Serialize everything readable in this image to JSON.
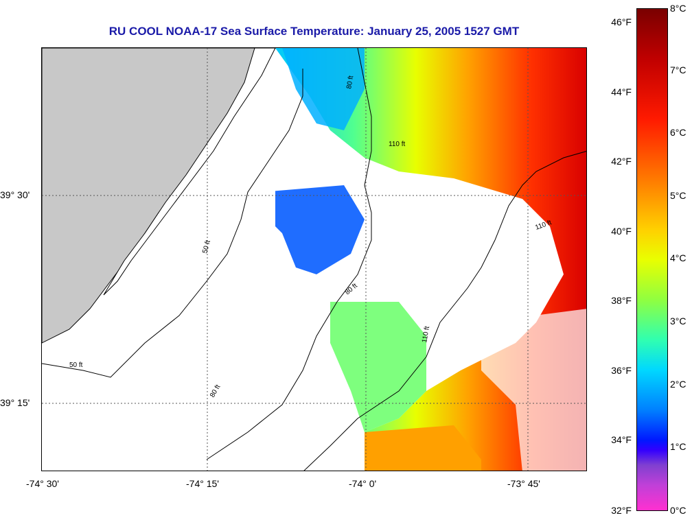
{
  "title": "RU COOL  NOAA-17  Sea Surface Temperature:  January 25, 2005 1527 GMT",
  "latitude_labels": [
    "39° 30'",
    "39° 15'"
  ],
  "longitude_labels": [
    "-74° 30'",
    "-74° 15'",
    "-74° 0'",
    "-73° 45'"
  ],
  "colorbar": {
    "fahrenheit_ticks": [
      "46°F",
      "44°F",
      "42°F",
      "40°F",
      "38°F",
      "36°F",
      "34°F",
      "32°F"
    ],
    "celsius_ticks": [
      "8°C",
      "7°C",
      "6°C",
      "5°C",
      "4°C",
      "3°C",
      "2°C",
      "1°C",
      "0°C"
    ]
  },
  "contour_labels": [
    "50 ft",
    "80 ft",
    "110 ft"
  ],
  "colors": {
    "title": "#1a1aa8",
    "land": "#c8c8c8",
    "no_data": "#ffffff"
  }
}
